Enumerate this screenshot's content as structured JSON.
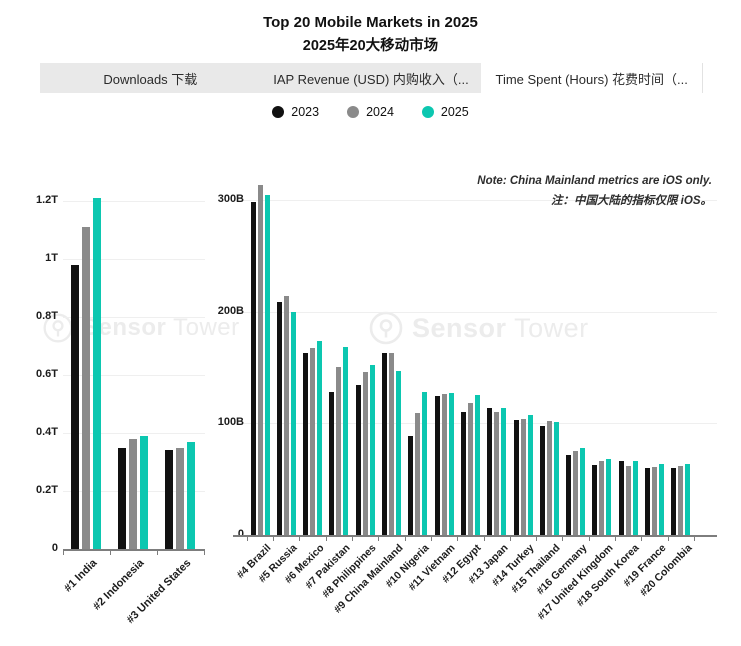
{
  "title": {
    "line1": "Top 20 Mobile Markets in 2025",
    "line2": "2025年20大移动市场"
  },
  "tabs": [
    {
      "label": "Downloads 下载",
      "active": false
    },
    {
      "label": "IAP Revenue (USD) 内购收入（...",
      "active": false
    },
    {
      "label": "Time Spent (Hours) 花费时间（...",
      "active": true
    }
  ],
  "legend": [
    {
      "label": "2023",
      "color": "#111111"
    },
    {
      "label": "2024",
      "color": "#8a8a8a"
    },
    {
      "label": "2025",
      "color": "#0cc7b0"
    }
  ],
  "note": {
    "line1": "Note: China Mainland metrics are iOS only.",
    "line2": "注：中国大陆的指标仅限 iOS。"
  },
  "watermark": {
    "bold": "Sensor",
    "light": "Tower"
  },
  "colors": {
    "y2023": "#111111",
    "y2024": "#8a8a8a",
    "y2025": "#0cc7b0",
    "gridline": "#efefef",
    "axis": "#7d7d7d"
  },
  "chart_data": [
    {
      "type": "bar",
      "title": "Time Spent (Hours) — Top 3 markets",
      "unit": "T",
      "ylim": [
        0,
        1.3
      ],
      "grid": true,
      "legend_position": "top-center",
      "categories": [
        "#1 India",
        "#2 Indonesia",
        "#3 United States"
      ],
      "series": [
        {
          "name": "2023",
          "color": "#111111",
          "values": [
            0.98,
            0.35,
            0.34
          ]
        },
        {
          "name": "2024",
          "color": "#8a8a8a",
          "values": [
            1.11,
            0.38,
            0.35
          ]
        },
        {
          "name": "2025",
          "color": "#0cc7b0",
          "values": [
            1.21,
            0.39,
            0.37
          ]
        }
      ],
      "yticks": [
        {
          "value": 0,
          "label": "0"
        },
        {
          "value": 0.2,
          "label": "0.2T"
        },
        {
          "value": 0.4,
          "label": "0.4T"
        },
        {
          "value": 0.6,
          "label": "0.6T"
        },
        {
          "value": 0.8,
          "label": "0.8T"
        },
        {
          "value": 1,
          "label": "1T"
        },
        {
          "value": 1.2,
          "label": "1.2T"
        }
      ]
    },
    {
      "type": "bar",
      "title": "Time Spent (Hours) — markets #4 to #20",
      "unit": "B",
      "ylim": [
        0,
        330
      ],
      "grid": true,
      "annotation": "Note: China Mainland metrics are iOS only. 注：中国大陆的指标仅限 iOS。",
      "categories": [
        "#4 Brazil",
        "#5 Russia",
        "#6 Mexico",
        "#7 Pakistan",
        "#8 Philippines",
        "#9 China Mainland",
        "#10 Nigeria",
        "#11 Vietnam",
        "#12 Egypt",
        "#13 Japan",
        "#14 Turkey",
        "#15 Thailand",
        "#16 Germany",
        "#17 United Kingdom",
        "#18 South Korea",
        "#19 France",
        "#20 Colombia"
      ],
      "series": [
        {
          "name": "2023",
          "color": "#111111",
          "values": [
            298,
            209,
            163,
            128,
            134,
            163,
            89,
            124,
            110,
            114,
            103,
            98,
            72,
            63,
            66,
            60,
            60
          ]
        },
        {
          "name": "2024",
          "color": "#8a8a8a",
          "values": [
            313,
            214,
            167,
            150,
            146,
            163,
            109,
            126,
            118,
            110,
            104,
            102,
            75,
            66,
            62,
            61,
            62
          ]
        },
        {
          "name": "2025",
          "color": "#0cc7b0",
          "values": [
            304,
            200,
            174,
            168,
            152,
            147,
            128,
            127,
            125,
            114,
            107,
            101,
            78,
            68,
            66,
            64,
            64
          ]
        }
      ],
      "yticks": [
        {
          "value": 0,
          "label": "0"
        },
        {
          "value": 100,
          "label": "100B"
        },
        {
          "value": 200,
          "label": "200B"
        },
        {
          "value": 300,
          "label": "300B"
        }
      ]
    }
  ]
}
